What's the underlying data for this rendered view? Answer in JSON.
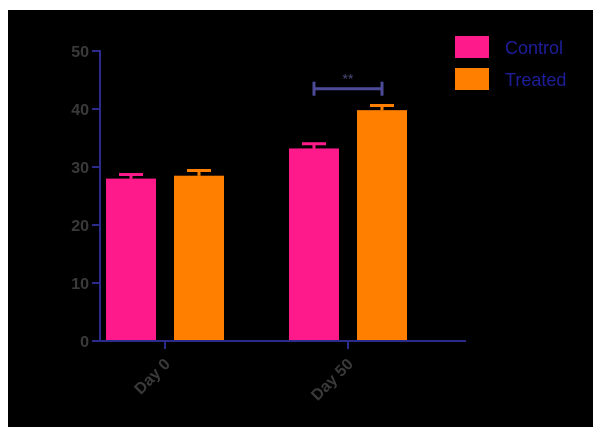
{
  "chart_data": {
    "type": "bar",
    "categories": [
      "Day 0",
      "Day 50"
    ],
    "series": [
      {
        "name": "Control",
        "values": [
          28,
          33.2
        ],
        "errors": [
          0.7,
          0.8
        ],
        "color": "#ff1a8c"
      },
      {
        "name": "Treated",
        "values": [
          28.5,
          39.8
        ],
        "errors": [
          0.9,
          0.8
        ],
        "color": "#ff8000"
      }
    ],
    "ylim": [
      0,
      50
    ],
    "yticks": [
      "0",
      "10",
      "20",
      "30",
      "40",
      "50"
    ],
    "annotations": [
      {
        "text": "**",
        "category": "Day 50",
        "between": [
          "Control",
          "Treated"
        ],
        "y": 43.5
      }
    ],
    "legend_position": "top-right",
    "background": "#000000",
    "axis_color": "#2b2b8a",
    "title": "",
    "xlabel": "",
    "ylabel": ""
  }
}
